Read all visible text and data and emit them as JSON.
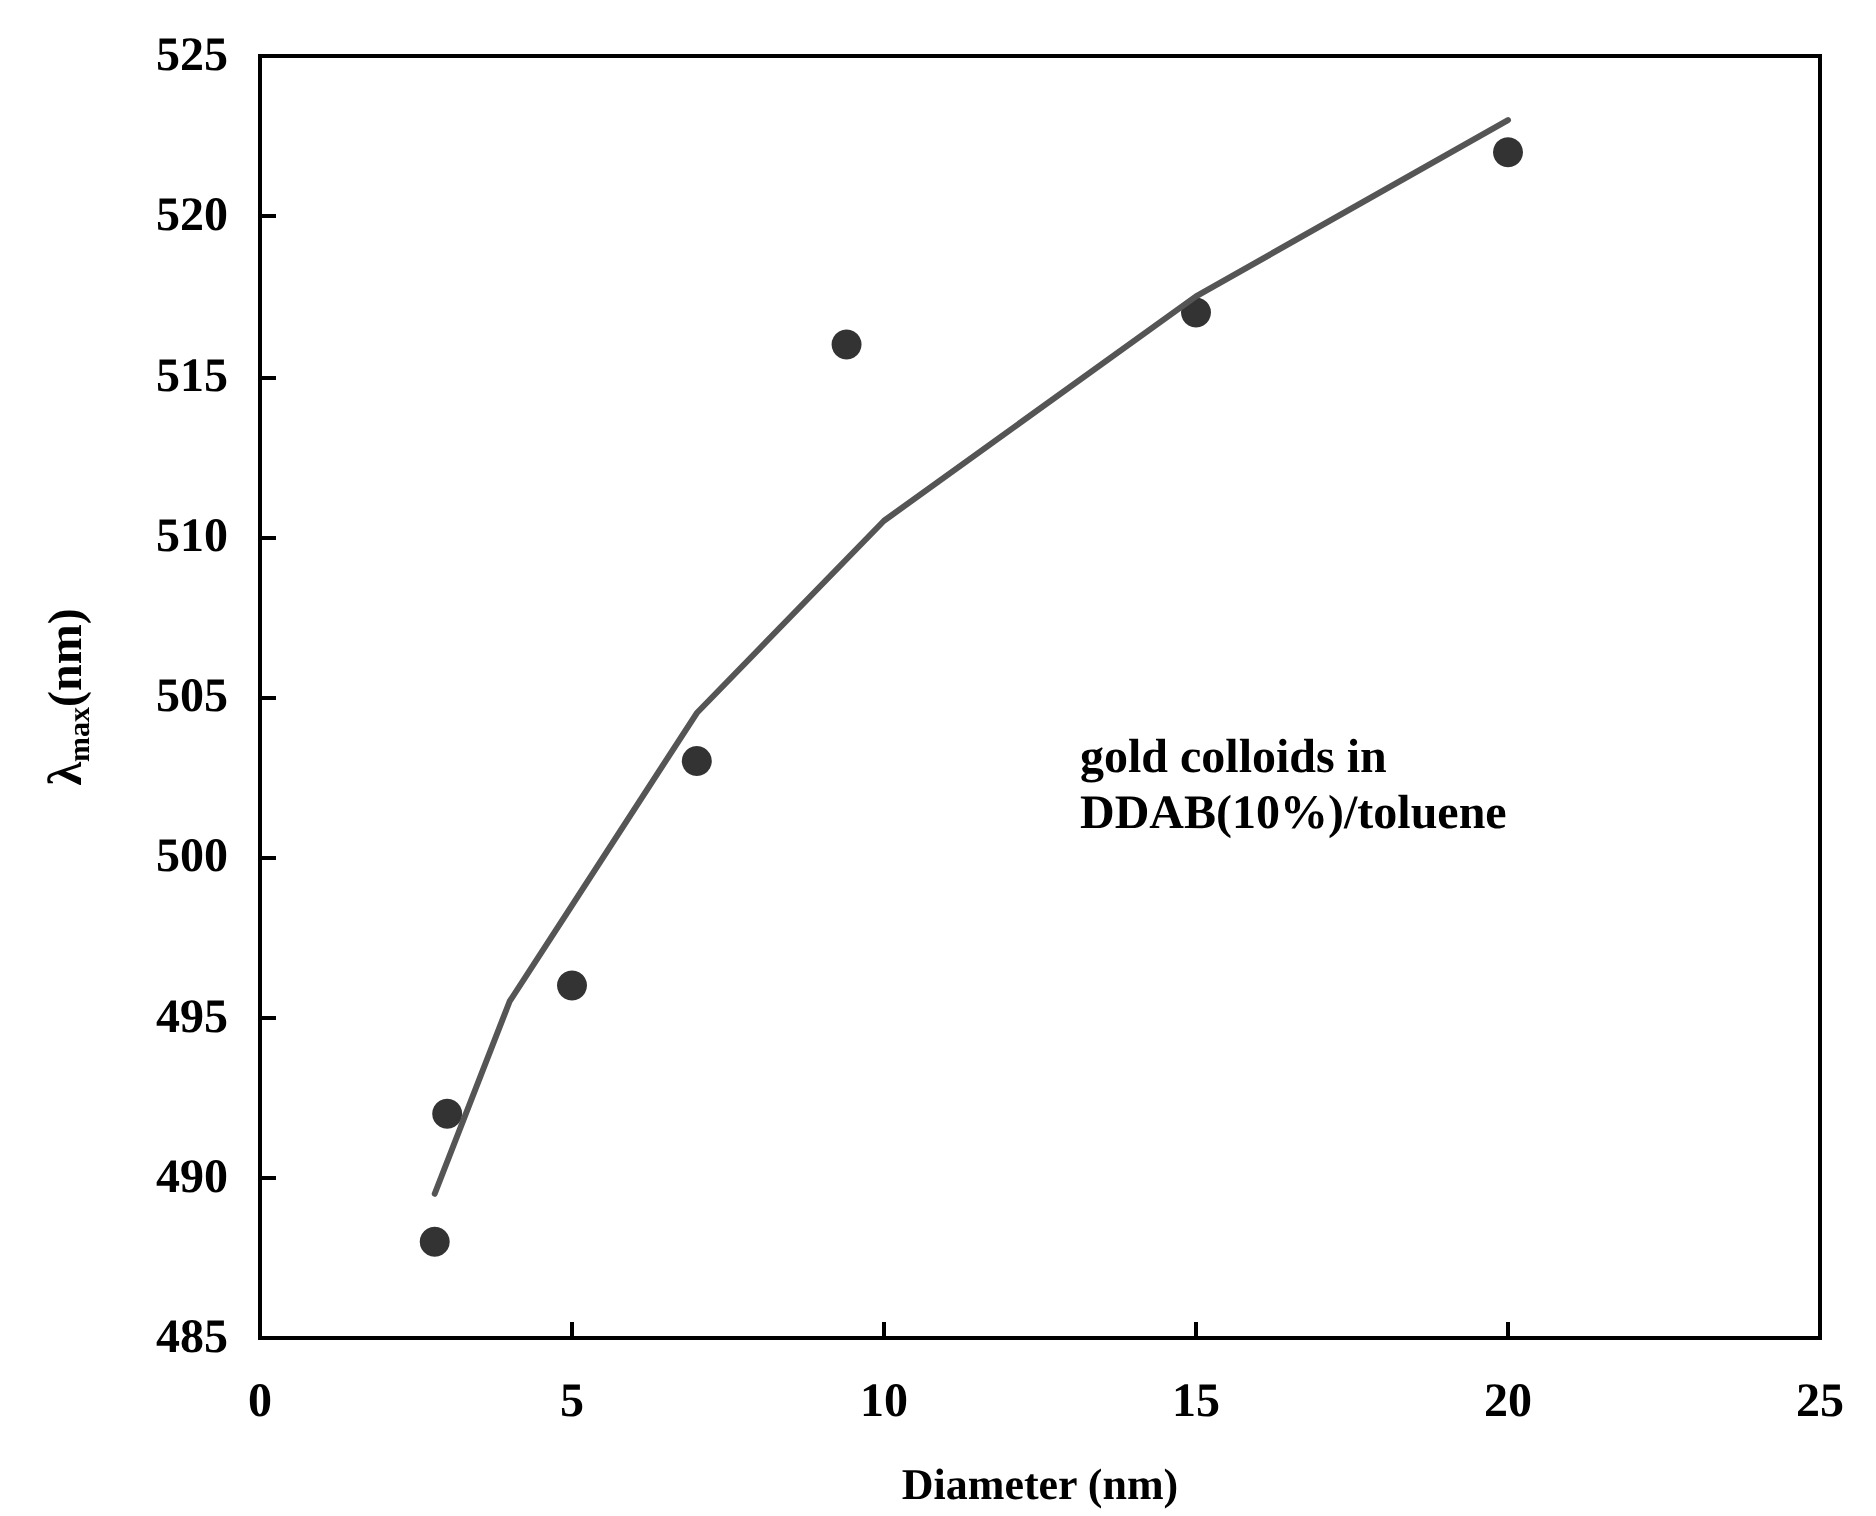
{
  "chart_data": {
    "type": "scatter",
    "xlabel": "Diameter (nm)",
    "ylabel": "λ$_{max}$(nm)",
    "annotations": [
      "gold colloids in\nDDAB(10%)/toluene"
    ],
    "xlim": [
      0,
      25
    ],
    "xticks": [
      0,
      5,
      10,
      15,
      20,
      25
    ],
    "ylim": [
      485,
      525
    ],
    "yticks": [
      485,
      490,
      495,
      500,
      505,
      510,
      515,
      520,
      525
    ],
    "grid": false,
    "marker": "circle",
    "series": [
      {
        "color": "#000000",
        "x": [
          2.8,
          3,
          5,
          7,
          9.4,
          15,
          20
        ],
        "values": [
          488,
          492,
          496,
          503,
          516,
          517,
          522
        ]
      },
      {
        "type": "line",
        "color": "#555555",
        "marker": "none",
        "line_style": "solid",
        "x": [
          2.8,
          4,
          5,
          7,
          10,
          15,
          20
        ],
        "values": [
          489.5,
          495.5,
          498.5,
          504.5,
          510.5,
          517.5,
          523
        ]
      }
    ]
  }
}
